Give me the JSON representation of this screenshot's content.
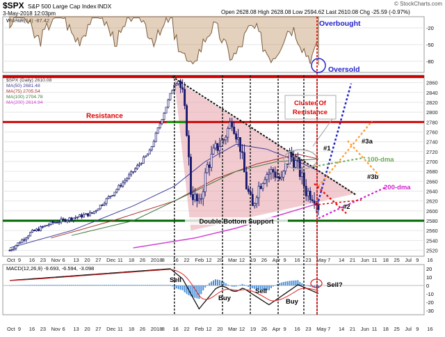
{
  "header": {
    "symbol": "$SPX",
    "name": "S&P 500 Large Cap Index",
    "exchange": "INDX",
    "datetime": "3-May-2018 12:03pm",
    "quote": "Open 2628.08  High 2628.08  Low 2594.62  Last 2610.08  Chg -25.59 (-0.97%)",
    "watermark": "© StockCharts.com"
  },
  "williams": {
    "label": "Wm%R(14) -87.42",
    "ticks": [
      -20,
      -50,
      -80
    ],
    "labels": {
      "overbought": "Overbought",
      "oversold": "Oversold"
    }
  },
  "price_legend": [
    {
      "text": "$SPX (Daily) 2610.08",
      "color": "#333333"
    },
    {
      "text": "MA(50) 2681.48",
      "color": "#3b3b9a"
    },
    {
      "text": "MA(75) 2705.54",
      "color": "#b03030"
    },
    {
      "text": "MA(100) 2704.78",
      "color": "#3a7a3a"
    },
    {
      "text": "MA(200) 2614.94",
      "color": "#d040d0"
    }
  ],
  "annotations": {
    "resistance": "Resistance",
    "cluster_line1": "Cluster Of",
    "cluster_line2": "Resistance",
    "dma100": "100-dma",
    "dma200": "200-dma",
    "support": "Double Bottom Support",
    "p1": "#1",
    "p2": "#2",
    "p3a": "#3a",
    "p3b": "#3b"
  },
  "macd": {
    "label": "MACD(12,26,9) -9.693, -6.594, -3.098",
    "ticks": [
      20,
      10,
      0,
      -10,
      -20,
      -30
    ],
    "notes": {
      "sell1": "Sell",
      "buy1": "Buy",
      "sell2": "Sell",
      "buy2": "Buy",
      "sell3": "Sell?"
    }
  },
  "x_labels": [
    "Oct",
    "9",
    "16",
    "23",
    "Nov",
    "6",
    "13",
    "20",
    "27",
    "Dec",
    "11",
    "18",
    "26",
    "2018",
    "8",
    "16",
    "22",
    "Feb",
    "12",
    "20",
    "Mar",
    "12",
    "19",
    "26",
    "Apr",
    "9",
    "16",
    "23",
    "May",
    "7",
    "14",
    "21",
    "Jun",
    "11",
    "18",
    "25",
    "Jul",
    "9",
    "16"
  ],
  "colors": {
    "resistance": "#dd0000",
    "support": "#006600",
    "candle": "#1a1a6e",
    "projection_blue": "#2222cc",
    "projection_orange": "#ff9922",
    "projection_red": "#ee1111"
  },
  "chart_data": {
    "type": "line",
    "title": "$SPX S&P 500 Large Cap Index",
    "y_ticks": [
      2520,
      2540,
      2560,
      2580,
      2600,
      2620,
      2640,
      2660,
      2680,
      2700,
      2720,
      2740,
      2760,
      2780,
      2800,
      2820,
      2840,
      2860
    ],
    "ylim": [
      2508,
      2875
    ],
    "levels": {
      "resistance_top": 2872,
      "resistance": 2780,
      "support": 2580
    },
    "series": [
      {
        "name": "$SPX (Daily)",
        "x": [
          0,
          10,
          20,
          30,
          40,
          50,
          60,
          68,
          75,
          80,
          82,
          84,
          86,
          88,
          92,
          96,
          100,
          104,
          108,
          112,
          115,
          118,
          120,
          124,
          128,
          132,
          136,
          140,
          144,
          148,
          150
        ],
        "values": [
          2520,
          2555,
          2575,
          2585,
          2595,
          2635,
          2680,
          2720,
          2800,
          2858,
          2865,
          2835,
          2765,
          2640,
          2610,
          2690,
          2725,
          2745,
          2785,
          2730,
          2650,
          2605,
          2640,
          2675,
          2680,
          2660,
          2715,
          2690,
          2640,
          2630,
          2610
        ]
      },
      {
        "name": "MA(50)",
        "x": [
          0,
          30,
          60,
          80,
          95,
          110,
          125,
          140,
          150
        ],
        "values": [
          2525,
          2560,
          2610,
          2650,
          2700,
          2735,
          2725,
          2700,
          2681
        ]
      },
      {
        "name": "MA(75)",
        "x": [
          20,
          50,
          80,
          100,
          120,
          140,
          150
        ],
        "values": [
          2545,
          2580,
          2620,
          2665,
          2695,
          2715,
          2705
        ]
      },
      {
        "name": "MA(100)",
        "x": [
          30,
          60,
          90,
          110,
          130,
          150
        ],
        "values": [
          2550,
          2580,
          2640,
          2680,
          2700,
          2705
        ]
      },
      {
        "name": "MA(200)",
        "x": [
          60,
          90,
          110,
          130,
          150
        ],
        "values": [
          2525,
          2545,
          2565,
          2590,
          2615
        ]
      }
    ]
  }
}
